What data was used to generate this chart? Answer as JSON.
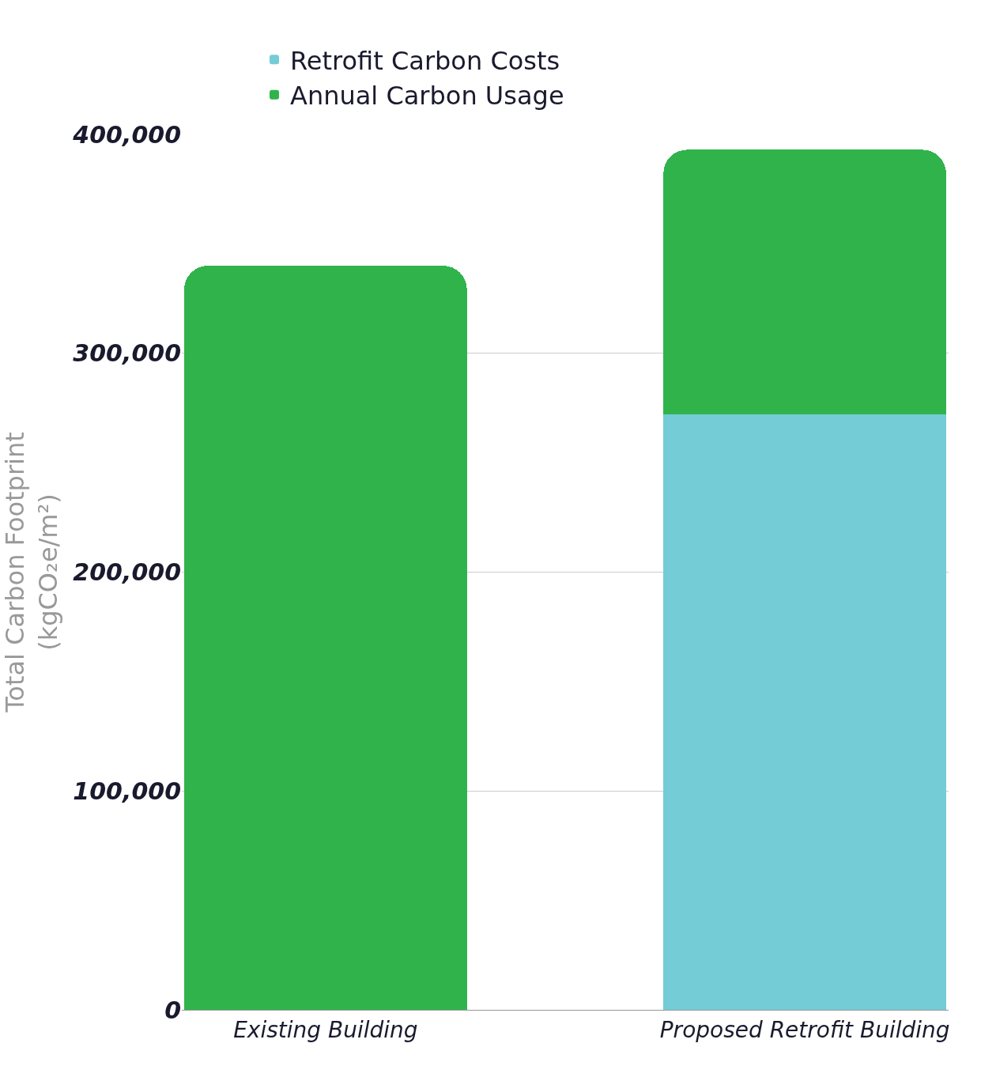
{
  "chart_data": {
    "type": "bar",
    "stacked": true,
    "ylabel": "Total Carbon Footprint\n(kgCO₂e/m²)",
    "categories": [
      "Existing Building",
      "Proposed Retrofit Building"
    ],
    "series": [
      {
        "name": "Retrofit Carbon Costs",
        "color": "#74ccd6",
        "values": [
          0,
          272000
        ]
      },
      {
        "name": "Annual Carbon Usage",
        "color": "#31b34c",
        "values": [
          340000,
          121000
        ]
      }
    ],
    "ylim": [
      0,
      400000
    ],
    "yticks": [
      0,
      {
        "value": 100000,
        "label": "100,000"
      },
      {
        "value": 200000,
        "label": "200,000"
      },
      {
        "value": 300000,
        "label": "300,000"
      },
      {
        "value": 400000,
        "label": "400,000"
      }
    ],
    "grid": "y",
    "legend": "top"
  }
}
